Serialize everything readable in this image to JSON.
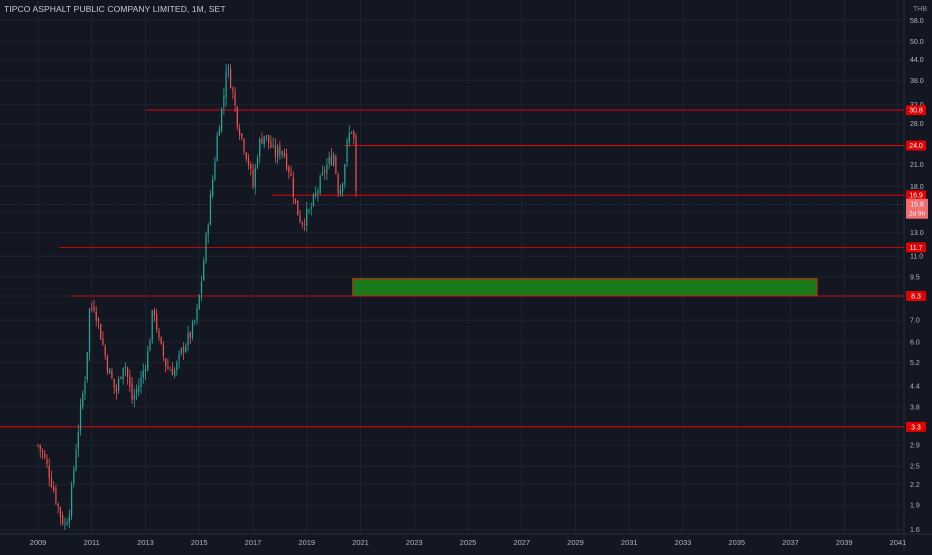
{
  "header": {
    "title": "TIPCO ASPHALT PUBLIC COMPANY LIMITED, 1M, SET",
    "currency": "THB"
  },
  "colors": {
    "background": "#131722",
    "grid": "#1e222d",
    "axis_text": "#b2b5be",
    "up": "#26a69a",
    "down": "#ef5350",
    "level_line": "#ff0000",
    "zone_fill": "#1b7a1b",
    "zone_border": "#ff0000"
  },
  "chart_data": {
    "type": "candlestick",
    "title": "TIPCO ASPHALT PUBLIC COMPANY LIMITED, 1M, SET",
    "interval": "1M",
    "y_scale": "log",
    "ylim": [
      1.55,
      66
    ],
    "xlim": [
      2009.0,
      2041.0
    ],
    "grid": true,
    "x_ticks": [
      "2009",
      "2011",
      "2013",
      "2015",
      "2017",
      "2019",
      "2021",
      "2023",
      "2025",
      "2027",
      "2029",
      "2031",
      "2033",
      "2035",
      "2037",
      "2039",
      "2041"
    ],
    "y_ticks": [
      "1.6",
      "1.9",
      "2.2",
      "2.5",
      "2.9",
      "3.3",
      "3.8",
      "4.4",
      "5.2",
      "6.0",
      "7.0",
      "8.3",
      "9.5",
      "11.0",
      "13.0",
      "15.0",
      "18.0",
      "21.0",
      "24.0",
      "28.0",
      "32.0",
      "38.0",
      "44.0",
      "50.0",
      "58.0"
    ],
    "anchor_points": [
      {
        "t": 2009.0,
        "p": 2.9
      },
      {
        "t": 2009.2,
        "p": 2.7
      },
      {
        "t": 2009.4,
        "p": 2.4
      },
      {
        "t": 2009.6,
        "p": 2.1
      },
      {
        "t": 2009.8,
        "p": 1.8
      },
      {
        "t": 2010.0,
        "p": 1.65
      },
      {
        "t": 2010.2,
        "p": 1.9
      },
      {
        "t": 2010.4,
        "p": 2.8
      },
      {
        "t": 2010.6,
        "p": 3.8
      },
      {
        "t": 2010.8,
        "p": 5.0
      },
      {
        "t": 2010.9,
        "p": 7.5
      },
      {
        "t": 2011.1,
        "p": 7.8
      },
      {
        "t": 2011.3,
        "p": 6.5
      },
      {
        "t": 2011.6,
        "p": 5.0
      },
      {
        "t": 2011.9,
        "p": 4.2
      },
      {
        "t": 2012.2,
        "p": 5.3
      },
      {
        "t": 2012.5,
        "p": 4.0
      },
      {
        "t": 2012.8,
        "p": 4.5
      },
      {
        "t": 2013.1,
        "p": 5.6
      },
      {
        "t": 2013.3,
        "p": 7.8
      },
      {
        "t": 2013.5,
        "p": 6.0
      },
      {
        "t": 2013.8,
        "p": 5.0
      },
      {
        "t": 2014.1,
        "p": 4.9
      },
      {
        "t": 2014.4,
        "p": 5.8
      },
      {
        "t": 2014.7,
        "p": 6.4
      },
      {
        "t": 2014.9,
        "p": 7.2
      },
      {
        "t": 2015.1,
        "p": 9.5
      },
      {
        "t": 2015.3,
        "p": 13.5
      },
      {
        "t": 2015.5,
        "p": 19.0
      },
      {
        "t": 2015.7,
        "p": 27.0
      },
      {
        "t": 2015.9,
        "p": 33.0
      },
      {
        "t": 2016.0,
        "p": 42.0
      },
      {
        "t": 2016.2,
        "p": 37.0
      },
      {
        "t": 2016.4,
        "p": 29.0
      },
      {
        "t": 2016.6,
        "p": 25.0
      },
      {
        "t": 2016.8,
        "p": 22.0
      },
      {
        "t": 2017.0,
        "p": 18.0
      },
      {
        "t": 2017.2,
        "p": 24.0
      },
      {
        "t": 2017.4,
        "p": 26.0
      },
      {
        "t": 2017.6,
        "p": 24.5
      },
      {
        "t": 2017.8,
        "p": 22.5
      },
      {
        "t": 2018.1,
        "p": 23.5
      },
      {
        "t": 2018.4,
        "p": 19.5
      },
      {
        "t": 2018.6,
        "p": 15.5
      },
      {
        "t": 2018.8,
        "p": 14.0
      },
      {
        "t": 2019.1,
        "p": 15.0
      },
      {
        "t": 2019.4,
        "p": 17.5
      },
      {
        "t": 2019.7,
        "p": 20.5
      },
      {
        "t": 2020.0,
        "p": 22.5
      },
      {
        "t": 2020.2,
        "p": 17.0
      },
      {
        "t": 2020.35,
        "p": 19.5
      },
      {
        "t": 2020.5,
        "p": 24.0
      },
      {
        "t": 2020.65,
        "p": 27.5
      },
      {
        "t": 2020.75,
        "p": 25.0
      },
      {
        "t": 2020.85,
        "p": 15.8
      }
    ],
    "last_price": 15.8,
    "countdown": "2d 9h",
    "horizontal_levels": [
      {
        "label": "30.8",
        "price": 30.8,
        "from": 2013.0
      },
      {
        "label": "24.0",
        "price": 24.0,
        "from": 2020.4
      },
      {
        "label": "16.9",
        "price": 16.9,
        "from": 2017.7
      },
      {
        "label": "11.7",
        "price": 11.7,
        "from": 2009.8
      },
      {
        "label": "8.3",
        "price": 8.3,
        "from": 2010.2
      },
      {
        "label": "3.3",
        "price": 3.3,
        "from": 2009.0
      }
    ],
    "zone": {
      "start": 2020.7,
      "end": 2038.0,
      "top": 9.4,
      "bottom": 8.3
    }
  }
}
